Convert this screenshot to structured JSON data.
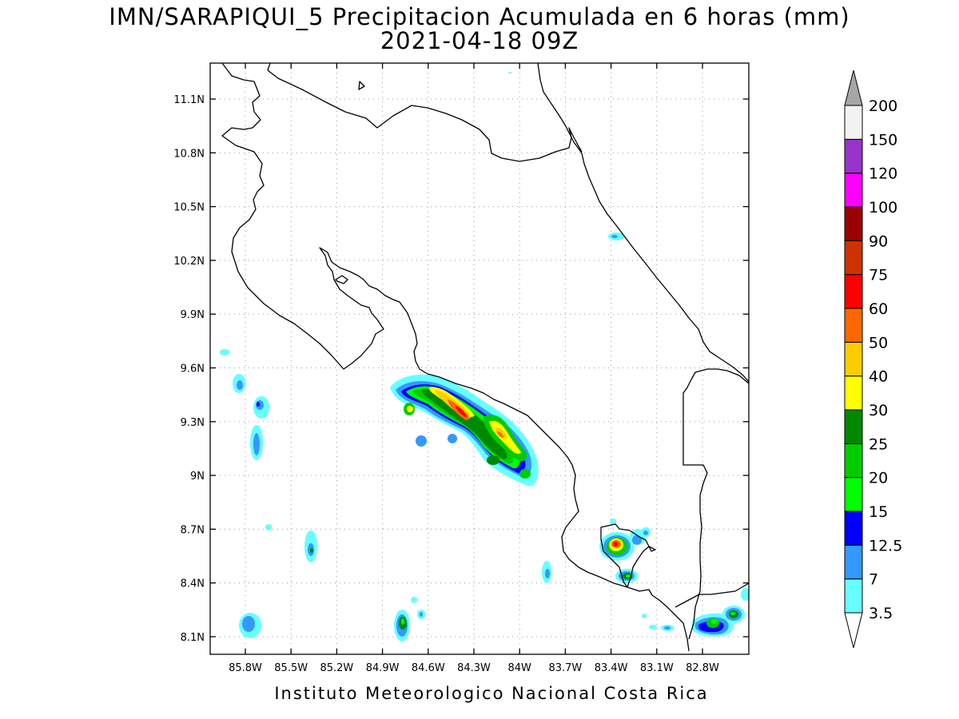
{
  "title": {
    "line1": "IMN/SARAPIQUI_5 Precipitacion Acumulada en 6 horas (mm)",
    "line2": "2021-04-18 09Z"
  },
  "credit": "Instituto Meteorologico Nacional Costa Rica",
  "map": {
    "lat_ticks": [
      "11.1N",
      "10.8N",
      "10.5N",
      "10.2N",
      "9.9N",
      "9.6N",
      "9.3N",
      "9N",
      "8.7N",
      "8.4N",
      "8.1N"
    ],
    "lon_ticks": [
      "85.8W",
      "85.5W",
      "85.2W",
      "84.9W",
      "84.6W",
      "84.3W",
      "84W",
      "83.7W",
      "83.4W",
      "83.1W",
      "82.8W"
    ],
    "grid": true,
    "coastline": "black",
    "variable": "6-hour accumulated precipitation (mm)"
  },
  "colorbar": {
    "labels": [
      "3.5",
      "7",
      "12.5",
      "15",
      "20",
      "25",
      "30",
      "40",
      "50",
      "60",
      "75",
      "90",
      "100",
      "120",
      "150",
      "200"
    ],
    "colors": [
      "#ffffff",
      "#66ffff",
      "#3399ff",
      "#0000ff",
      "#00ff00",
      "#00cc00",
      "#008800",
      "#ffff00",
      "#ffcc00",
      "#ff6600",
      "#ff0000",
      "#cc3300",
      "#990000",
      "#ff00ff",
      "#9933cc",
      "#f2f2f2"
    ],
    "over_color": "#a6a6a6",
    "under_color": "#ffffff"
  }
}
